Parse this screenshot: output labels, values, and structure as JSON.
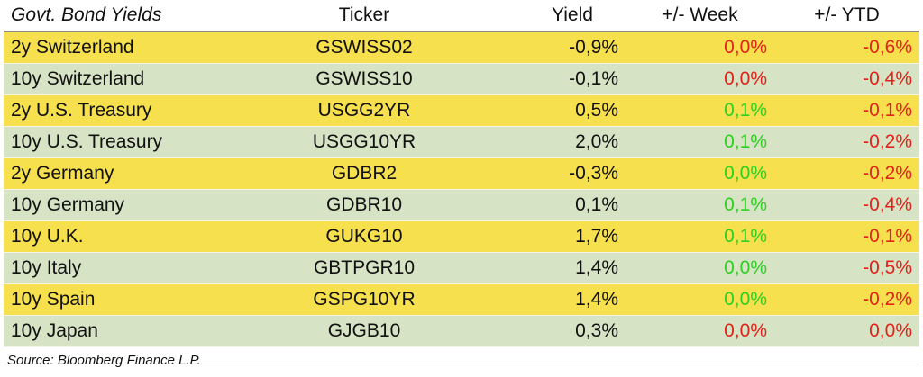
{
  "header": {
    "title": "Govt. Bond Yields",
    "ticker": "Ticker",
    "yield": "Yield",
    "week": "+/- Week",
    "ytd": "+/- YTD"
  },
  "rows": [
    {
      "name": "2y Switzerland",
      "ticker": "GSWISS02",
      "yield": "-0,9%",
      "week": "0,0%",
      "ytd": "-0,6%",
      "week_color": "red"
    },
    {
      "name": "10y Switzerland",
      "ticker": "GSWISS10",
      "yield": "-0,1%",
      "week": "0,0%",
      "ytd": "-0,4%",
      "week_color": "red"
    },
    {
      "name": "2y U.S. Treasury",
      "ticker": "USGG2YR",
      "yield": "0,5%",
      "week": "0,1%",
      "ytd": "-0,1%",
      "week_color": "green"
    },
    {
      "name": "10y U.S. Treasury",
      "ticker": "USGG10YR",
      "yield": "2,0%",
      "week": "0,1%",
      "ytd": "-0,2%",
      "week_color": "green"
    },
    {
      "name": "2y Germany",
      "ticker": "GDBR2",
      "yield": "-0,3%",
      "week": "0,0%",
      "ytd": "-0,2%",
      "week_color": "green"
    },
    {
      "name": "10y Germany",
      "ticker": "GDBR10",
      "yield": "0,1%",
      "week": "0,1%",
      "ytd": "-0,4%",
      "week_color": "green"
    },
    {
      "name": "10y U.K.",
      "ticker": "GUKG10",
      "yield": "1,7%",
      "week": "0,1%",
      "ytd": "-0,1%",
      "week_color": "green"
    },
    {
      "name": "10y Italy",
      "ticker": "GBTPGR10",
      "yield": "1,4%",
      "week": "0,0%",
      "ytd": "-0,5%",
      "week_color": "green"
    },
    {
      "name": "10y Spain",
      "ticker": "GSPG10YR",
      "yield": "1,4%",
      "week": "0,0%",
      "ytd": "-0,2%",
      "week_color": "green"
    },
    {
      "name": "10y Japan",
      "ticker": "GJGB10",
      "yield": "0,3%",
      "week": "0,0%",
      "ytd": "0,0%",
      "week_color": "red"
    }
  ],
  "colors": {
    "row_yellow": "#f6e04e",
    "row_green": "#d6e3c5",
    "negative_red": "#e0241b",
    "positive_green": "#2fcf22"
  },
  "footer": {
    "source": "Source: Bloomberg Finance L.P."
  }
}
